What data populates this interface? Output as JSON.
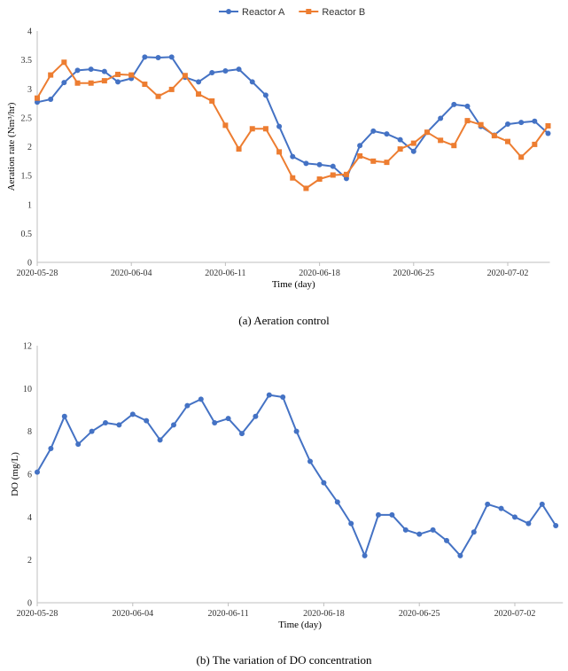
{
  "chart_data": [
    {
      "type": "line",
      "xlabel": "Time (day)",
      "ylabel": "Aeration rate (Nm³/hr)",
      "ylim": [
        0,
        4
      ],
      "yticks": [
        "0",
        "0.5",
        "1",
        "1.5",
        "2",
        "2.5",
        "3",
        "3.5",
        "4"
      ],
      "xticks": [
        "2020-05-28",
        "2020-06-04",
        "2020-06-11",
        "2020-06-18",
        "2020-06-25",
        "2020-07-02"
      ],
      "x": [
        "2020-05-28",
        "2020-05-29",
        "2020-05-30",
        "2020-05-31",
        "2020-06-01",
        "2020-06-02",
        "2020-06-03",
        "2020-06-04",
        "2020-06-05",
        "2020-06-06",
        "2020-06-07",
        "2020-06-08",
        "2020-06-09",
        "2020-06-10",
        "2020-06-11",
        "2020-06-12",
        "2020-06-13",
        "2020-06-14",
        "2020-06-15",
        "2020-06-16",
        "2020-06-17",
        "2020-06-18",
        "2020-06-19",
        "2020-06-20",
        "2020-06-21",
        "2020-06-22",
        "2020-06-23",
        "2020-06-24",
        "2020-06-25",
        "2020-06-26",
        "2020-06-27",
        "2020-06-28",
        "2020-06-29",
        "2020-06-30",
        "2020-07-01",
        "2020-07-02",
        "2020-07-03",
        "2020-07-04",
        "2020-07-05"
      ],
      "legend": "top-center",
      "grid": false,
      "series": [
        {
          "name": "Reactor A",
          "color": "#4472c4",
          "marker": "circle",
          "values": [
            2.77,
            2.82,
            3.11,
            3.32,
            3.34,
            3.3,
            3.12,
            3.18,
            3.55,
            3.54,
            3.55,
            3.2,
            3.12,
            3.28,
            3.31,
            3.34,
            3.12,
            2.89,
            2.35,
            1.83,
            1.71,
            1.69,
            1.66,
            1.45,
            2.02,
            2.27,
            2.22,
            2.12,
            1.92,
            2.25,
            2.49,
            2.73,
            2.7,
            2.35,
            2.2,
            2.39,
            2.42,
            2.44,
            2.23
          ]
        },
        {
          "name": "Reactor B",
          "color": "#ed7d31",
          "marker": "square",
          "values": [
            2.84,
            3.24,
            3.46,
            3.1,
            3.1,
            3.14,
            3.25,
            3.24,
            3.08,
            2.87,
            2.99,
            3.23,
            2.91,
            2.79,
            2.37,
            1.96,
            2.31,
            2.31,
            1.91,
            1.46,
            1.28,
            1.44,
            1.51,
            1.52,
            1.84,
            1.75,
            1.73,
            1.96,
            2.06,
            2.25,
            2.11,
            2.02,
            2.45,
            2.38,
            2.19,
            2.09,
            1.82,
            2.04,
            2.36
          ]
        }
      ]
    },
    {
      "type": "line",
      "xlabel": "Time (day)",
      "ylabel": "DO (mg/L)",
      "ylim": [
        0,
        12
      ],
      "yticks": [
        "0",
        "2",
        "4",
        "6",
        "8",
        "10",
        "12"
      ],
      "xticks": [
        "2020-05-28",
        "2020-06-04",
        "2020-06-11",
        "2020-06-18",
        "2020-06-25",
        "2020-07-02"
      ],
      "x": [
        "2020-05-28",
        "2020-05-29",
        "2020-05-30",
        "2020-05-31",
        "2020-06-01",
        "2020-06-02",
        "2020-06-03",
        "2020-06-04",
        "2020-06-05",
        "2020-06-06",
        "2020-06-07",
        "2020-06-08",
        "2020-06-09",
        "2020-06-10",
        "2020-06-11",
        "2020-06-12",
        "2020-06-13",
        "2020-06-14",
        "2020-06-15",
        "2020-06-16",
        "2020-06-17",
        "2020-06-18",
        "2020-06-19",
        "2020-06-20",
        "2020-06-21",
        "2020-06-22",
        "2020-06-23",
        "2020-06-24",
        "2020-06-25",
        "2020-06-26",
        "2020-06-27",
        "2020-06-28",
        "2020-06-29",
        "2020-06-30",
        "2020-07-01",
        "2020-07-02",
        "2020-07-03",
        "2020-07-04",
        "2020-07-05"
      ],
      "grid": false,
      "series": [
        {
          "color": "#4472c4",
          "marker": "circle",
          "values": [
            6.1,
            7.2,
            8.7,
            7.4,
            8.0,
            8.4,
            8.3,
            8.8,
            8.5,
            7.6,
            8.3,
            9.2,
            9.5,
            8.4,
            8.6,
            7.9,
            8.7,
            9.7,
            9.6,
            8.0,
            6.6,
            5.6,
            4.7,
            3.7,
            2.2,
            4.1,
            4.1,
            3.4,
            3.2,
            3.4,
            2.9,
            2.2,
            3.3,
            4.6,
            4.4,
            4.0,
            3.7,
            4.6,
            3.6
          ]
        }
      ]
    }
  ],
  "captions": {
    "a": "(a)  Aeration control",
    "b": "(b)  The variation of DO concentration"
  }
}
